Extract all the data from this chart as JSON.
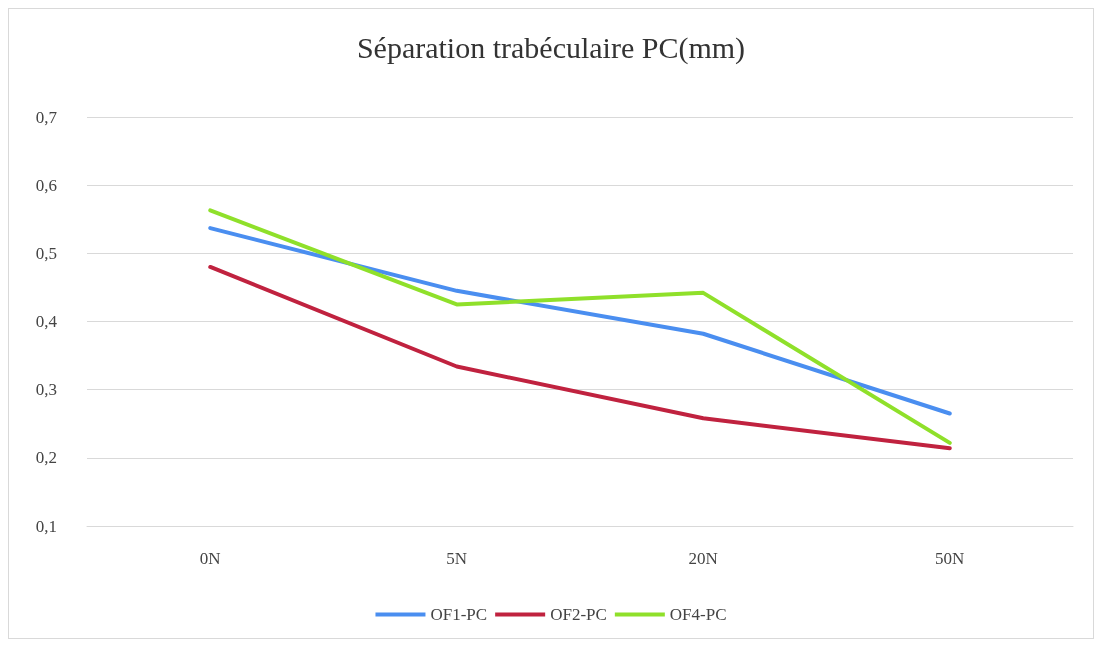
{
  "chart_data": {
    "type": "line",
    "title": "Séparation trabéculaire PC(mm)",
    "categories": [
      "0N",
      "5N",
      "20N",
      "50N"
    ],
    "series": [
      {
        "name": "OF1-PC",
        "color": "#4a8ef0",
        "values": [
          0.537,
          0.445,
          0.382,
          0.265
        ]
      },
      {
        "name": "OF2-PC",
        "color": "#c0223f",
        "values": [
          0.48,
          0.334,
          0.258,
          0.214
        ]
      },
      {
        "name": "OF4-PC",
        "color": "#8fe02a",
        "values": [
          0.563,
          0.425,
          0.442,
          0.222
        ]
      }
    ],
    "ylim": [
      0.1,
      0.7
    ],
    "yticks": [
      {
        "value": 0.1,
        "label": "0,1"
      },
      {
        "value": 0.2,
        "label": "0,2"
      },
      {
        "value": 0.3,
        "label": "0,3"
      },
      {
        "value": 0.4,
        "label": "0,4"
      },
      {
        "value": 0.5,
        "label": "0,5"
      },
      {
        "value": 0.6,
        "label": "0,6"
      },
      {
        "value": 0.7,
        "label": "0,7"
      }
    ],
    "grid": "y",
    "legend": "bottom",
    "marker": "none",
    "line_style": "solid"
  }
}
